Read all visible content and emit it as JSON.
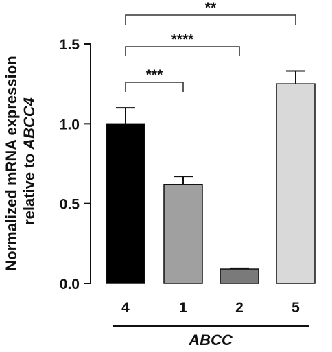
{
  "chart_data": {
    "type": "bar",
    "title": "",
    "ylabel_line1": "Normalized mRNA expression",
    "ylabel_line2_prefix": "relative to ",
    "ylabel_line2_gene": "ABCC4",
    "xlabel": "ABCC",
    "ylim": [
      0,
      1.5
    ],
    "yticks": [
      0.0,
      0.5,
      1.0,
      1.5
    ],
    "ytick_labels": [
      "0.0",
      "0.5",
      "1.0",
      "1.5"
    ],
    "categories": [
      "4",
      "1",
      "2",
      "5"
    ],
    "values": [
      1.0,
      0.62,
      0.09,
      1.25
    ],
    "errors": [
      0.1,
      0.05,
      0.005,
      0.08
    ],
    "bar_colors": [
      "#000000",
      "#a0a0a0",
      "#7a7a7a",
      "#d9d9d9"
    ],
    "significance": [
      {
        "from": "4",
        "to": "1",
        "label": "***"
      },
      {
        "from": "4",
        "to": "2",
        "label": "****"
      },
      {
        "from": "4",
        "to": "5",
        "label": "**"
      }
    ]
  }
}
